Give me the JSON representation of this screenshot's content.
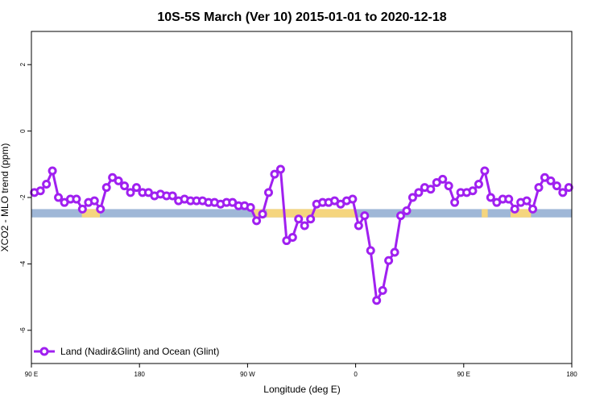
{
  "chart_data": {
    "type": "line",
    "title": "10S-5S March (Ver 10)   2015-01-01 to 2020-12-18",
    "xlabel": "Longitude (deg E)",
    "ylabel": "XCO2 - MLO trend (ppm)",
    "xlim": [
      0,
      450
    ],
    "ylim": [
      -7,
      3
    ],
    "grid": false,
    "x_ticks": [
      {
        "value": 0,
        "label": "90 E"
      },
      {
        "value": 90,
        "label": "180"
      },
      {
        "value": 180,
        "label": "90 W"
      },
      {
        "value": 270,
        "label": "0"
      },
      {
        "value": 360,
        "label": "90 E"
      },
      {
        "value": 450,
        "label": "180"
      }
    ],
    "y_ticks": [
      {
        "value": 2,
        "label": "2"
      },
      {
        "value": 0,
        "label": "0"
      },
      {
        "value": -2,
        "label": "-2"
      },
      {
        "value": -4,
        "label": "-4"
      },
      {
        "value": -6,
        "label": "-6"
      }
    ],
    "legend": {
      "position": "bottom-left",
      "entries": [
        {
          "label": "Land (Nadir&Glint) and Ocean (Glint)",
          "color": "#a020f0"
        }
      ]
    },
    "colors": {
      "series": "#a020f0",
      "ocean": "#9fb7d7",
      "land": "#f5d57e"
    },
    "surface_band": {
      "y_top": -2.35,
      "y_bottom": -2.6
    },
    "land_segments": [
      [
        42,
        57
      ],
      [
        185,
        195
      ],
      [
        196,
        270
      ],
      [
        375,
        380
      ],
      [
        399,
        416
      ]
    ],
    "series": [
      {
        "name": "Land (Nadir&Glint) and Ocean (Glint)",
        "x": [
          2.5,
          7.5,
          12.5,
          17.5,
          22.5,
          27.5,
          32.5,
          37.5,
          42.5,
          47.5,
          52.5,
          57.5,
          62.5,
          67.5,
          72.5,
          77.5,
          82.5,
          87.5,
          92.5,
          97.5,
          102.5,
          107.5,
          112.5,
          117.5,
          122.5,
          127.5,
          132.5,
          137.5,
          142.5,
          147.5,
          152.5,
          157.5,
          162.5,
          167.5,
          172.5,
          177.5,
          182.5,
          187.5,
          192.5,
          197.5,
          202.5,
          207.5,
          212.5,
          217.5,
          222.5,
          227.5,
          232.5,
          237.5,
          242.5,
          247.5,
          252.5,
          257.5,
          262.5,
          267.5,
          272.5,
          277.5,
          282.5,
          287.5,
          292.5,
          297.5,
          302.5,
          307.5,
          312.5,
          317.5,
          322.5,
          327.5,
          332.5,
          337.5,
          342.5,
          347.5,
          352.5,
          357.5,
          362.5,
          367.5,
          372.5,
          377.5,
          382.5,
          387.5,
          392.5,
          397.5,
          402.5,
          407.5,
          412.5,
          417.5,
          422.5,
          427.5,
          432.5,
          437.5,
          442.5,
          447.5
        ],
        "values": [
          -1.85,
          -1.8,
          -1.6,
          -1.2,
          -2.0,
          -2.15,
          -2.05,
          -2.05,
          -2.35,
          -2.15,
          -2.1,
          -2.35,
          -1.7,
          -1.4,
          -1.5,
          -1.65,
          -1.85,
          -1.7,
          -1.85,
          -1.85,
          -1.95,
          -1.9,
          -1.95,
          -1.95,
          -2.1,
          -2.05,
          -2.1,
          -2.1,
          -2.1,
          -2.15,
          -2.15,
          -2.2,
          -2.15,
          -2.15,
          -2.25,
          -2.25,
          -2.3,
          -2.7,
          -2.5,
          -1.85,
          -1.3,
          -1.15,
          -3.3,
          -3.2,
          -2.65,
          -2.85,
          -2.65,
          -2.2,
          -2.15,
          -2.15,
          -2.1,
          -2.2,
          -2.1,
          -2.05,
          -2.85,
          -2.55,
          -3.6,
          -5.1,
          -4.8,
          -3.9,
          -3.65,
          -2.55,
          -2.4,
          -2.0,
          -1.85,
          -1.7,
          -1.75,
          -1.55,
          -1.45,
          -1.65,
          -2.15,
          -1.85,
          -1.85,
          -1.8,
          -1.6,
          -1.2,
          -2.0,
          -2.15,
          -2.05,
          -2.05,
          -2.35,
          -2.15,
          -2.1,
          -2.35,
          -1.7,
          -1.4,
          -1.5,
          -1.65,
          -1.85,
          -1.7
        ]
      }
    ]
  }
}
